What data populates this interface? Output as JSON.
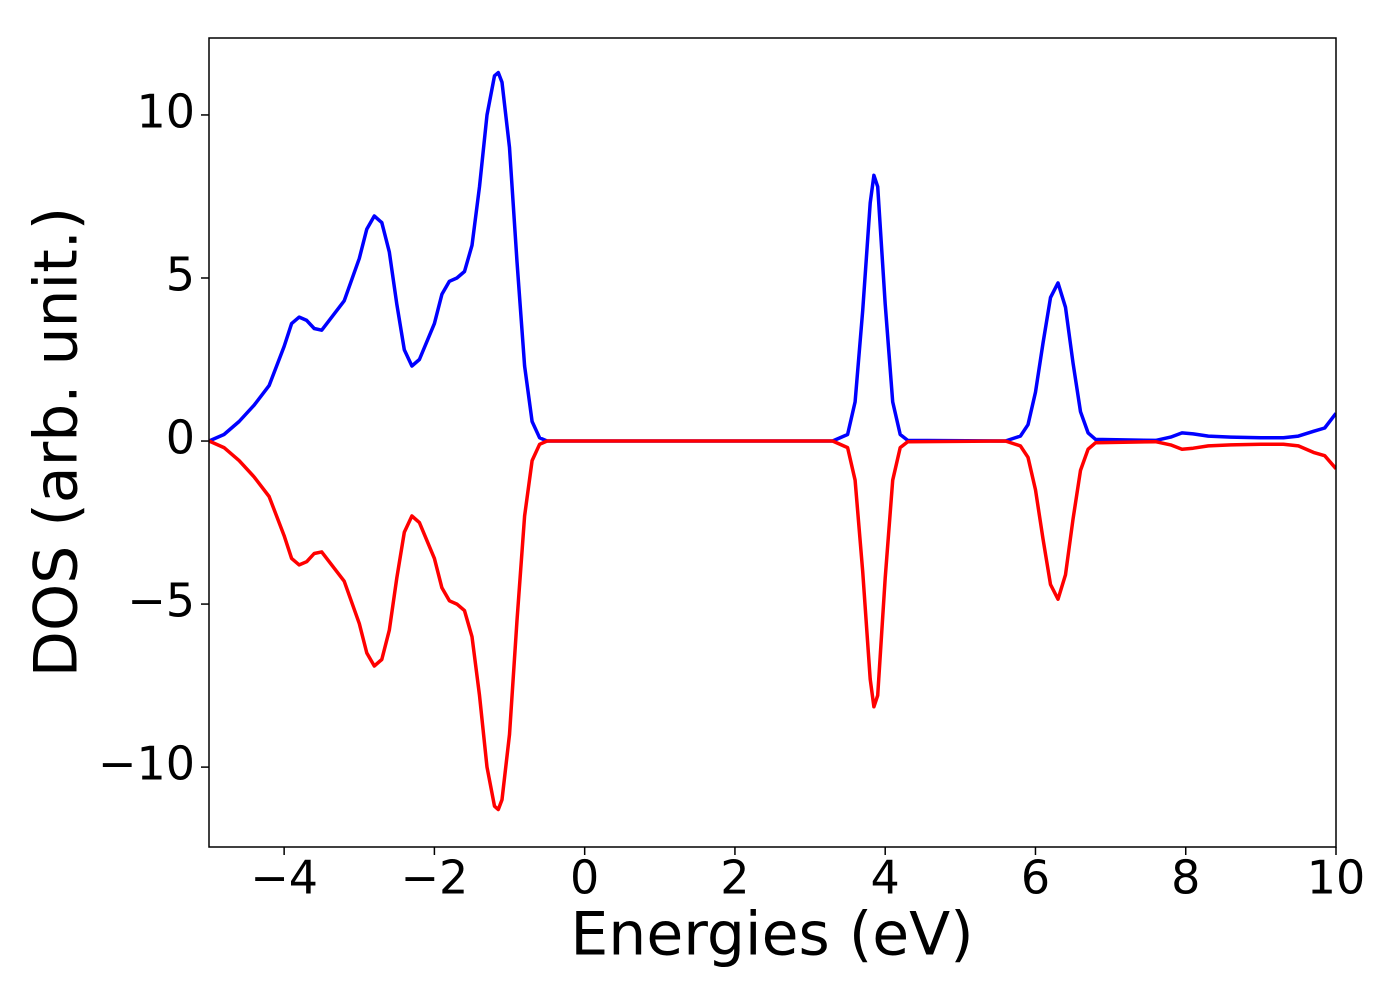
{
  "chart_data": {
    "type": "line",
    "xlabel": "Energies (eV)",
    "ylabel": "DOS (arb. unit.)",
    "x": [
      -5,
      -4.8,
      -4.6,
      -4.4,
      -4.2,
      -4.0,
      -3.9,
      -3.8,
      -3.7,
      -3.6,
      -3.5,
      -3.4,
      -3.2,
      -3.0,
      -2.9,
      -2.8,
      -2.7,
      -2.6,
      -2.5,
      -2.4,
      -2.3,
      -2.2,
      -2.0,
      -1.9,
      -1.8,
      -1.7,
      -1.6,
      -1.5,
      -1.4,
      -1.3,
      -1.2,
      -1.15,
      -1.1,
      -1.0,
      -0.9,
      -0.8,
      -0.7,
      -0.6,
      -0.5,
      3.3,
      3.5,
      3.6,
      3.7,
      3.8,
      3.85,
      3.9,
      4.0,
      4.1,
      4.2,
      4.3,
      5.6,
      5.8,
      5.9,
      6.0,
      6.1,
      6.2,
      6.3,
      6.4,
      6.5,
      6.6,
      6.7,
      6.8,
      7.6,
      7.8,
      7.95,
      8.1,
      8.3,
      8.6,
      9.0,
      9.3,
      9.5,
      9.7,
      9.85,
      10.0
    ],
    "series": [
      {
        "color": "#0000ff",
        "values": [
          0,
          0.2,
          0.6,
          1.1,
          1.7,
          2.9,
          3.6,
          3.8,
          3.7,
          3.45,
          3.4,
          3.7,
          4.3,
          5.6,
          6.5,
          6.9,
          6.7,
          5.8,
          4.2,
          2.8,
          2.3,
          2.5,
          3.6,
          4.5,
          4.9,
          5.0,
          5.2,
          6.0,
          7.8,
          10.0,
          11.2,
          11.3,
          11.0,
          9.0,
          5.5,
          2.3,
          0.6,
          0.1,
          0,
          0,
          0.2,
          1.2,
          4.0,
          7.3,
          8.15,
          7.8,
          4.2,
          1.2,
          0.2,
          0.02,
          0,
          0.15,
          0.5,
          1.5,
          3.0,
          4.4,
          4.85,
          4.1,
          2.4,
          0.9,
          0.25,
          0.05,
          0.02,
          0.12,
          0.25,
          0.22,
          0.15,
          0.12,
          0.1,
          0.1,
          0.15,
          0.3,
          0.4,
          0.85
        ]
      },
      {
        "color": "#ff0000",
        "values": [
          0,
          -0.2,
          -0.6,
          -1.1,
          -1.7,
          -2.9,
          -3.6,
          -3.8,
          -3.7,
          -3.45,
          -3.4,
          -3.7,
          -4.3,
          -5.6,
          -6.5,
          -6.9,
          -6.7,
          -5.8,
          -4.2,
          -2.8,
          -2.3,
          -2.5,
          -3.6,
          -4.5,
          -4.9,
          -5.0,
          -5.2,
          -6.0,
          -7.8,
          -10.0,
          -11.2,
          -11.3,
          -11.0,
          -9.0,
          -5.5,
          -2.3,
          -0.6,
          -0.1,
          0,
          0,
          -0.2,
          -1.2,
          -4.0,
          -7.3,
          -8.15,
          -7.8,
          -4.2,
          -1.2,
          -0.2,
          -0.02,
          0,
          -0.15,
          -0.5,
          -1.5,
          -3.0,
          -4.4,
          -4.85,
          -4.1,
          -2.4,
          -0.9,
          -0.25,
          -0.05,
          -0.02,
          -0.12,
          -0.25,
          -0.22,
          -0.15,
          -0.12,
          -0.1,
          -0.1,
          -0.15,
          -0.35,
          -0.45,
          -0.85
        ]
      }
    ],
    "xlim": [
      -5,
      10
    ],
    "xticks": [
      {
        "value": -4,
        "label": "−4"
      },
      {
        "value": -2,
        "label": "−2"
      },
      0,
      2,
      4,
      6,
      8,
      10
    ],
    "ylim": [
      -12.45,
      12.36
    ],
    "yticks": [
      {
        "value": -10,
        "label": "−10"
      },
      {
        "value": -5,
        "label": "−5"
      },
      0,
      5,
      10
    ],
    "grid": false
  }
}
